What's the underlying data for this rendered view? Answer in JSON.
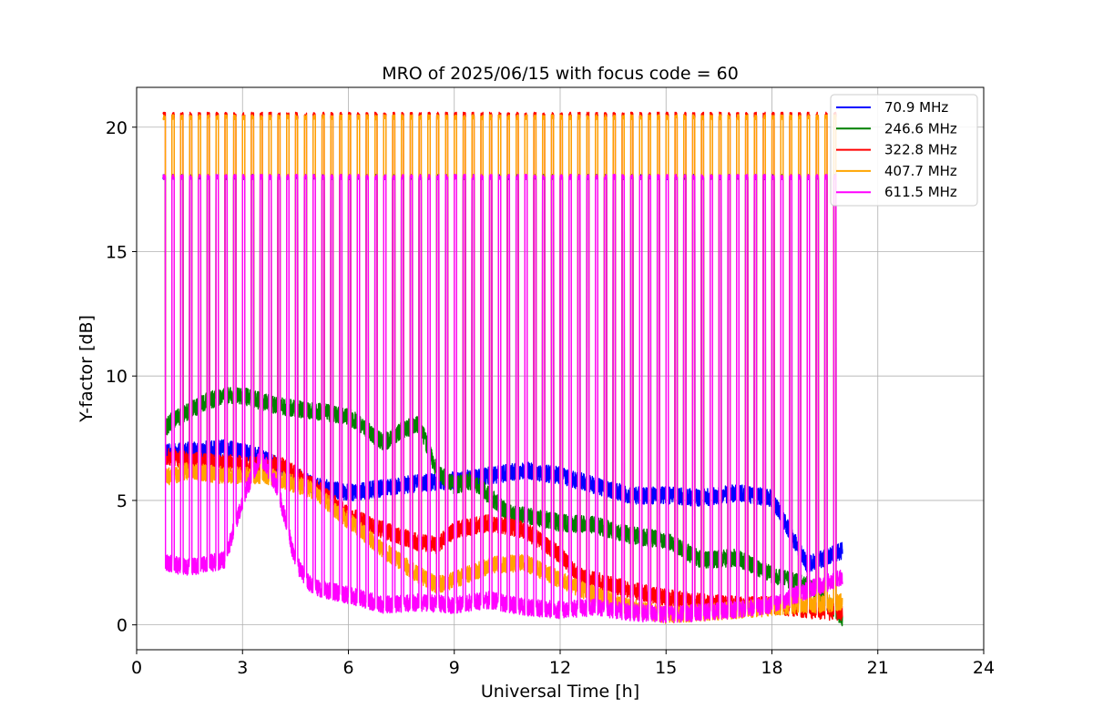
{
  "chart_data": {
    "type": "line",
    "title": "MRO of 2025/06/15 with focus code = 60",
    "xlabel": "Universal Time [h]",
    "ylabel": "Y-factor [dB]",
    "xlim": [
      0,
      24
    ],
    "ylim": [
      -1,
      21.6
    ],
    "xticks": [
      0,
      3,
      6,
      9,
      12,
      15,
      18,
      21,
      24
    ],
    "yticks": [
      0,
      5,
      10,
      15,
      20
    ],
    "grid": true,
    "legend_position": "top-right",
    "x_start": 0.75,
    "x_end": 20.0,
    "calibration_pulses": {
      "period_h": 0.25,
      "width_h": 0.065,
      "first_h": 0.75,
      "last_h": 19.75
    },
    "series": [
      {
        "name": "70.9 MHz",
        "color": "#0000ff",
        "pulse_peak": 18.0,
        "x": [
          0.75,
          1.5,
          2.5,
          3.5,
          4.5,
          5.0,
          6.0,
          7.0,
          8.0,
          9.0,
          10.0,
          11.0,
          12.0,
          13.0,
          14.0,
          15.0,
          16.0,
          17.0,
          18.0,
          19.0,
          20.0
        ],
        "values": [
          6.9,
          7.0,
          7.1,
          6.8,
          6.0,
          5.6,
          5.3,
          5.5,
          5.7,
          5.8,
          6.0,
          6.2,
          6.0,
          5.6,
          5.2,
          5.2,
          5.1,
          5.3,
          5.1,
          2.4,
          3.0
        ]
      },
      {
        "name": "246.6 MHz",
        "color": "#008000",
        "pulse_peak": 18.0,
        "x": [
          0.75,
          1.0,
          2.0,
          2.5,
          3.0,
          4.0,
          5.0,
          6.0,
          7.0,
          7.5,
          8.0,
          8.5,
          9.0,
          9.5,
          10.0,
          10.5,
          11.0,
          12.0,
          13.0,
          14.0,
          15.0,
          16.0,
          17.0,
          18.0,
          19.0,
          20.0
        ],
        "values": [
          7.8,
          8.2,
          9.0,
          9.2,
          9.2,
          8.8,
          8.6,
          8.4,
          7.3,
          7.8,
          8.1,
          6.2,
          5.6,
          5.8,
          5.2,
          4.5,
          4.4,
          4.1,
          4.0,
          3.6,
          3.4,
          2.6,
          2.7,
          2.0,
          1.6,
          0.3
        ]
      },
      {
        "name": "322.8 MHz",
        "color": "#ff0000",
        "pulse_peak": 20.5,
        "x": [
          0.75,
          1.5,
          2.5,
          3.5,
          4.0,
          5.0,
          6.0,
          7.0,
          8.0,
          8.5,
          9.0,
          10.0,
          11.0,
          12.0,
          12.5,
          13.0,
          14.0,
          15.0,
          16.0,
          17.0,
          18.0,
          19.0,
          20.0
        ],
        "values": [
          6.8,
          6.6,
          6.5,
          6.4,
          6.5,
          5.6,
          4.4,
          3.8,
          3.3,
          3.2,
          3.8,
          4.1,
          3.8,
          2.8,
          2.0,
          1.8,
          1.4,
          1.1,
          0.9,
          0.8,
          0.8,
          0.6,
          0.5
        ]
      },
      {
        "name": "407.7 MHz",
        "color": "#ffa500",
        "pulse_peak": 20.4,
        "x": [
          0.75,
          1.5,
          2.5,
          3.5,
          4.0,
          5.0,
          6.0,
          7.0,
          8.0,
          8.5,
          9.0,
          10.0,
          11.0,
          12.0,
          13.0,
          14.0,
          15.0,
          16.0,
          17.0,
          18.0,
          19.0,
          20.0
        ],
        "values": [
          5.9,
          6.2,
          6.0,
          6.0,
          5.9,
          5.4,
          4.2,
          3.0,
          2.0,
          1.6,
          1.8,
          2.4,
          2.5,
          1.8,
          1.2,
          0.7,
          0.4,
          0.5,
          0.6,
          0.7,
          0.8,
          0.9
        ]
      },
      {
        "name": "611.5 MHz",
        "color": "#ff00ff",
        "pulse_peak": 18.0,
        "x": [
          0.75,
          1.5,
          2.5,
          3.0,
          3.5,
          4.0,
          4.5,
          5.0,
          6.0,
          7.0,
          8.0,
          9.0,
          10.0,
          11.0,
          12.0,
          13.0,
          14.0,
          15.0,
          16.0,
          17.0,
          18.0,
          19.0,
          20.0
        ],
        "values": [
          2.5,
          2.3,
          2.6,
          5.0,
          6.8,
          5.5,
          2.5,
          1.5,
          1.2,
          0.8,
          0.9,
          0.8,
          1.0,
          0.7,
          0.6,
          0.7,
          0.5,
          0.4,
          0.5,
          0.6,
          0.8,
          1.4,
          1.9
        ]
      }
    ]
  }
}
